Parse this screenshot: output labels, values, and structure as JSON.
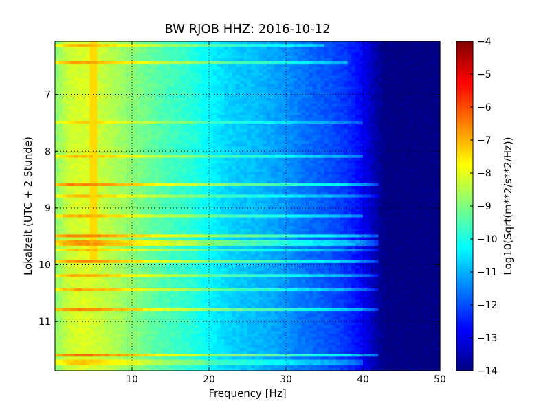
{
  "chart_data": {
    "type": "heatmap",
    "title": "BW RJOB HHZ: 2016-10-12",
    "xlabel": "Frequency [Hz]",
    "ylabel": "Lokalzeit (UTC + 2 Stunde)",
    "colorbar_label": "Log10(Sqrt(m**2/s**2/Hz))",
    "xlim": [
      0,
      50
    ],
    "ylim": [
      11.87,
      6.06
    ],
    "y_axis_inverted": true,
    "x_ticks": [
      10,
      20,
      30,
      40,
      50
    ],
    "x_tick_labels": [
      "10",
      "20",
      "30",
      "40",
      "50"
    ],
    "y_ticks": [
      7,
      8,
      9,
      10,
      11
    ],
    "y_tick_labels": [
      "7",
      "8",
      "9",
      "10",
      "11"
    ],
    "color_range": [
      -14,
      -4
    ],
    "colorbar_ticks": [
      -4,
      -5,
      -6,
      -7,
      -8,
      -9,
      -10,
      -11,
      -12,
      -13,
      -14
    ],
    "colorbar_tick_labels": [
      "−4",
      "−5",
      "−6",
      "−7",
      "−8",
      "−9",
      "−10",
      "−11",
      "−12",
      "−13",
      "−14"
    ],
    "colormap": "jet",
    "grid": "dotted",
    "frequency_profile": {
      "frequency_hz": [
        0,
        2,
        4,
        6,
        8,
        10,
        12,
        14,
        16,
        18,
        20,
        22,
        24,
        26,
        28,
        30,
        32,
        34,
        36,
        38,
        40,
        41,
        42,
        43,
        50
      ],
      "log10_psd": [
        -8.9,
        -8.2,
        -8.1,
        -8.3,
        -8.6,
        -8.9,
        -9.2,
        -9.5,
        -9.7,
        -9.9,
        -10.3,
        -10.6,
        -10.8,
        -10.9,
        -11.1,
        -11.3,
        -11.6,
        -11.8,
        -12.0,
        -12.3,
        -12.8,
        -13.3,
        -13.7,
        -14.0,
        -14.0
      ]
    },
    "line_features": [
      {
        "frequency_hz": 5.0,
        "time_start": 6.06,
        "time_end": 9.95,
        "log10_psd": -7.4
      }
    ],
    "bright_bands": [
      {
        "time": 6.12,
        "freq_max": 35,
        "level": 1.0
      },
      {
        "time": 6.42,
        "freq_max": 38,
        "level": 1.2
      },
      {
        "time": 7.5,
        "freq_max": 40,
        "level": 0.8
      },
      {
        "time": 8.1,
        "freq_max": 40,
        "level": 1.0
      },
      {
        "time": 8.6,
        "freq_max": 42,
        "level": 1.6
      },
      {
        "time": 8.8,
        "freq_max": 42,
        "level": 1.0
      },
      {
        "time": 9.15,
        "freq_max": 40,
        "level": 1.2
      },
      {
        "time": 9.5,
        "freq_max": 42,
        "level": 1.6
      },
      {
        "time": 9.62,
        "freq_max": 42,
        "level": 1.4
      },
      {
        "time": 9.75,
        "freq_max": 42,
        "level": 1.0
      },
      {
        "time": 9.95,
        "freq_max": 42,
        "level": 1.5
      },
      {
        "time": 10.2,
        "freq_max": 42,
        "level": 1.2
      },
      {
        "time": 10.45,
        "freq_max": 42,
        "level": 1.2
      },
      {
        "time": 10.8,
        "freq_max": 42,
        "level": 1.6
      },
      {
        "time": 11.6,
        "freq_max": 42,
        "level": 1.8
      },
      {
        "time": 11.72,
        "freq_max": 40,
        "level": 0.9
      }
    ]
  }
}
